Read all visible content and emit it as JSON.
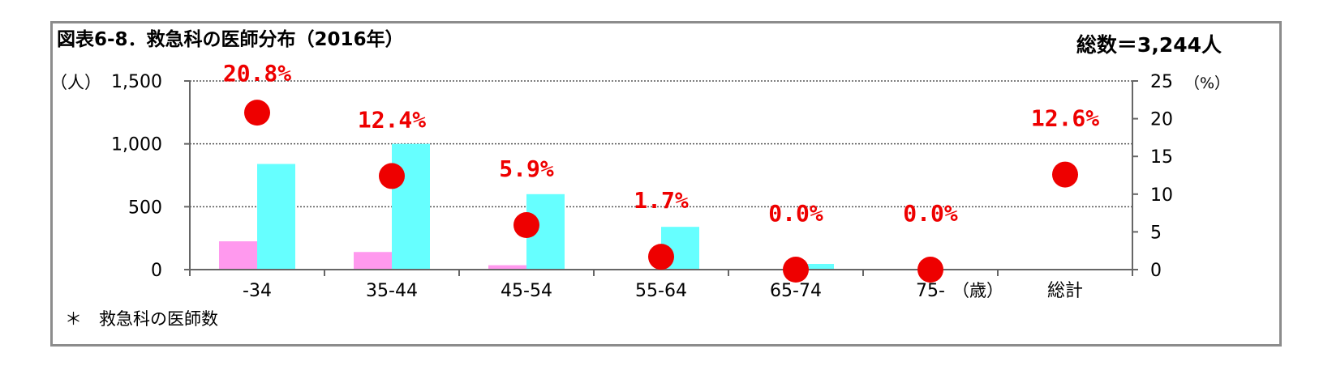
{
  "chart_data": {
    "type": "bar",
    "title": "図表6-8．救急科の医師分布（2016年）",
    "total_label": "総数＝3,244人",
    "footnote": "＊　救急科の医師数",
    "y_left_label": "（人）",
    "y_right_label": "（%）",
    "x_unit": "（歳）",
    "categories": [
      "-34",
      "35-44",
      "45-54",
      "55-64",
      "65-74",
      "75-",
      "総計"
    ],
    "ylim_left": [
      0,
      1500
    ],
    "ylim_right": [
      0,
      25
    ],
    "left_ticks": [
      "0",
      "500",
      "1,000",
      "1,500"
    ],
    "left_tick_values": [
      0,
      500,
      1000,
      1500
    ],
    "right_ticks": [
      "0",
      "5",
      "10",
      "15",
      "20",
      "25"
    ],
    "right_tick_values": [
      0,
      5,
      10,
      15,
      20,
      25
    ],
    "grid": "horizontal dotted",
    "series": [
      {
        "type": "bar",
        "axis": "left",
        "color": "#ff99ee",
        "values": [
          225,
          140,
          35,
          5,
          2,
          0,
          null
        ]
      },
      {
        "type": "bar",
        "axis": "left",
        "color": "#66ffff",
        "values": [
          840,
          1000,
          600,
          340,
          45,
          2,
          null
        ]
      },
      {
        "type": "scatter",
        "axis": "right",
        "color": "#ee0000",
        "values": [
          20.8,
          12.4,
          5.9,
          1.7,
          0.0,
          0.0,
          12.6
        ],
        "labels": [
          "20.8%",
          "12.4%",
          "5.9%",
          "1.7%",
          "0.0%",
          "0.0%",
          "12.6%"
        ]
      }
    ]
  }
}
